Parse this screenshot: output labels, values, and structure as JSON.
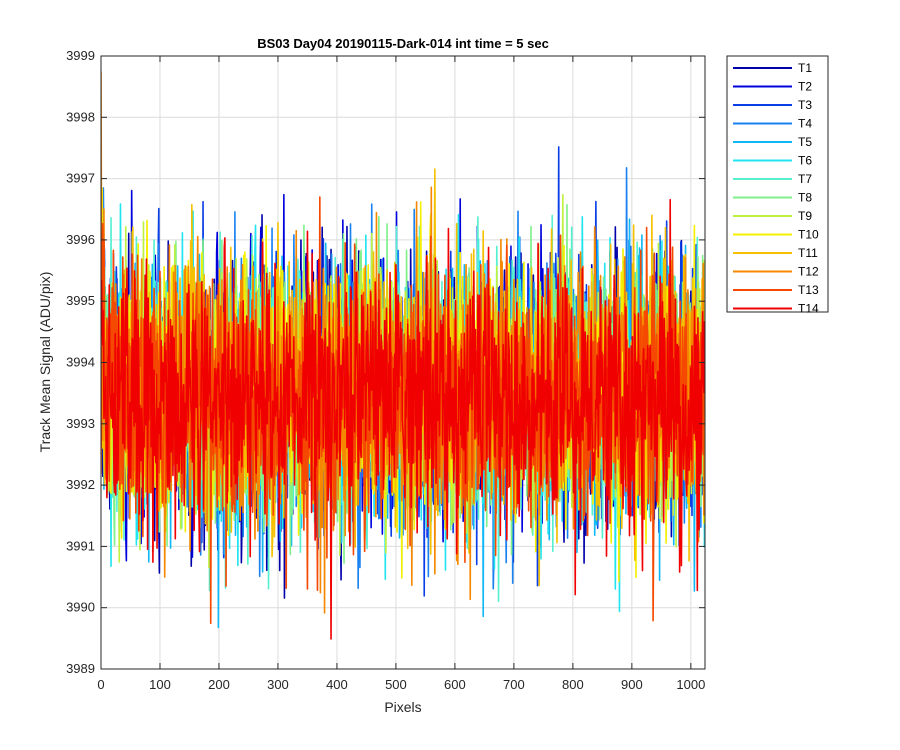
{
  "chart_data": {
    "type": "line",
    "title": "BS03 Day04 20190115-Dark-014 int time = 5 sec",
    "xlabel": "Pixels",
    "ylabel": "Track Mean Signal (ADU/pix)",
    "xlim": [
      0,
      1024
    ],
    "ylim": [
      3989,
      3999
    ],
    "xticks": [
      "0",
      "100",
      "200",
      "300",
      "400",
      "500",
      "600",
      "700",
      "800",
      "900",
      "1000"
    ],
    "yticks": [
      "3989",
      "3990",
      "3991",
      "3992",
      "3993",
      "3994",
      "3995",
      "3996",
      "3997",
      "3998",
      "3999"
    ],
    "grid": true,
    "legend_position": "outside-right",
    "n_points": 1024,
    "series": [
      {
        "name": "T1",
        "color": "#0000aa",
        "mean": 3993.5,
        "spread": 1.25
      },
      {
        "name": "T2",
        "color": "#0000dd",
        "mean": 3993.5,
        "spread": 1.25
      },
      {
        "name": "T3",
        "color": "#0a3ee6",
        "mean": 3993.5,
        "spread": 1.2
      },
      {
        "name": "T4",
        "color": "#1a82f0",
        "mean": 3993.5,
        "spread": 1.2
      },
      {
        "name": "T5",
        "color": "#12b8f5",
        "mean": 3993.5,
        "spread": 1.2
      },
      {
        "name": "T6",
        "color": "#20e4f0",
        "mean": 3993.5,
        "spread": 1.2
      },
      {
        "name": "T7",
        "color": "#55f0d0",
        "mean": 3993.5,
        "spread": 1.2
      },
      {
        "name": "T8",
        "color": "#80f08a",
        "mean": 3993.5,
        "spread": 1.2
      },
      {
        "name": "T9",
        "color": "#c0f040",
        "mean": 3993.5,
        "spread": 1.2
      },
      {
        "name": "T10",
        "color": "#f5f000",
        "mean": 3993.5,
        "spread": 1.2
      },
      {
        "name": "T11",
        "color": "#f5c000",
        "mean": 3993.5,
        "spread": 1.2
      },
      {
        "name": "T12",
        "color": "#f58800",
        "mean": 3993.5,
        "spread": 1.2
      },
      {
        "name": "T13",
        "color": "#f54800",
        "mean": 3993.4,
        "spread": 1.2
      },
      {
        "name": "T14",
        "color": "#f00000",
        "mean": 3993.4,
        "spread": 1.2
      }
    ]
  }
}
